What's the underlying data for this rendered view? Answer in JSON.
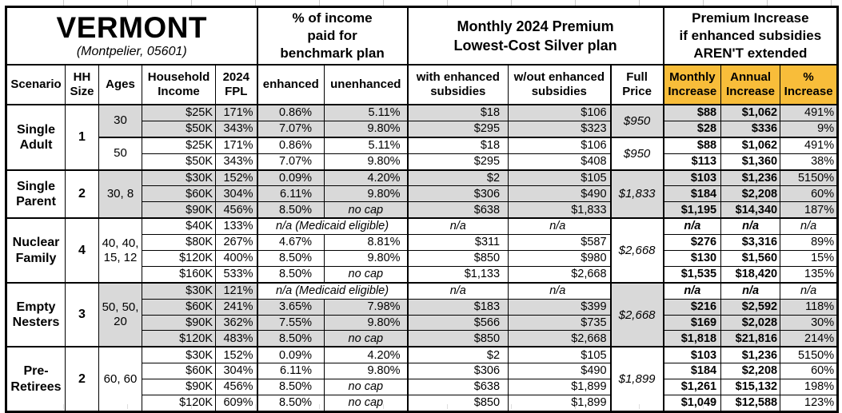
{
  "colors": {
    "gold": "#F8BD3A",
    "row_shade": "#D9D9D9",
    "border": "#000000",
    "background": "#FFFFFF"
  },
  "title": {
    "state": "VERMONT",
    "subtitle": "(Montpelier, 05601)"
  },
  "headers": {
    "benchmark": [
      "% of income",
      "paid for",
      "benchmark plan"
    ],
    "premium": [
      "Monthly 2024 Premium",
      "Lowest-Cost Silver plan"
    ],
    "increase": [
      "Premium Increase",
      "if enhanced subsidies",
      "AREN'T extended"
    ]
  },
  "columns": {
    "scenario": "Scenario",
    "hh": [
      "HH",
      "Size"
    ],
    "ages": "Ages",
    "income": [
      "Household",
      "Income"
    ],
    "fpl": [
      "2024",
      "FPL"
    ],
    "enhanced": "enhanced",
    "unenhanced": "unenhanced",
    "with_sub": [
      "with enhanced",
      "subsidies"
    ],
    "wout_sub": [
      "w/out enhanced",
      "subsidies"
    ],
    "full": [
      "Full",
      "Price"
    ],
    "monthly": [
      "Monthly",
      "Increase"
    ],
    "annual": [
      "Annual",
      "Increase"
    ],
    "pct": [
      "%",
      "Increase"
    ]
  },
  "labels": {
    "na": "n/a",
    "medicaid": "n/a (Medicaid eligible)",
    "nocap": "no cap"
  },
  "groups": [
    {
      "scenario": [
        "Single",
        "Adult"
      ],
      "hh_size": "1",
      "blocks": [
        {
          "ages": [
            "30"
          ],
          "shaded": true,
          "full_price": "$950",
          "rows": [
            {
              "income": "$25K",
              "fpl": "171%",
              "enh": "0.86%",
              "unenh": "5.11%",
              "wsub": "$18",
              "wosub": "$106",
              "mon": "$88",
              "ann": "$1,062",
              "pct": "491%"
            },
            {
              "income": "$50K",
              "fpl": "343%",
              "enh": "7.07%",
              "unenh": "9.80%",
              "wsub": "$295",
              "wosub": "$323",
              "mon": "$28",
              "ann": "$336",
              "pct": "9%"
            }
          ]
        },
        {
          "ages": [
            "50"
          ],
          "shaded": false,
          "full_price": "$950",
          "rows": [
            {
              "income": "$25K",
              "fpl": "171%",
              "enh": "0.86%",
              "unenh": "5.11%",
              "wsub": "$18",
              "wosub": "$106",
              "mon": "$88",
              "ann": "$1,062",
              "pct": "491%"
            },
            {
              "income": "$50K",
              "fpl": "343%",
              "enh": "7.07%",
              "unenh": "9.80%",
              "wsub": "$295",
              "wosob": "",
              "wosub": "$408",
              "mon": "$113",
              "ann": "$1,360",
              "pct": "38%"
            }
          ]
        }
      ]
    },
    {
      "scenario": [
        "Single",
        "Parent"
      ],
      "hh_size": "2",
      "blocks": [
        {
          "ages": [
            "30, 8"
          ],
          "shaded": true,
          "full_price": "$1,833",
          "rows": [
            {
              "income": "$30K",
              "fpl": "152%",
              "enh": "0.09%",
              "unenh": "4.20%",
              "wsub": "$2",
              "wosub": "$105",
              "mon": "$103",
              "ann": "$1,236",
              "pct": "5150%"
            },
            {
              "income": "$60K",
              "fpl": "304%",
              "enh": "6.11%",
              "unenh": "9.80%",
              "wsub": "$306",
              "wosub": "$490",
              "mon": "$184",
              "ann": "$2,208",
              "pct": "60%"
            },
            {
              "income": "$90K",
              "fpl": "456%",
              "enh": "8.50%",
              "nocap": true,
              "wsub": "$638",
              "wosub": "$1,833",
              "mon": "$1,195",
              "ann": "$14,340",
              "pct": "187%"
            }
          ]
        }
      ]
    },
    {
      "scenario": [
        "Nuclear",
        "Family"
      ],
      "hh_size": "4",
      "blocks": [
        {
          "ages": [
            "40, 40,",
            "15, 12"
          ],
          "shaded": false,
          "full_price": "$2,668",
          "rows": [
            {
              "income": "$40K",
              "fpl": "133%",
              "medicaid": true
            },
            {
              "income": "$80K",
              "fpl": "267%",
              "enh": "4.67%",
              "unenh": "8.81%",
              "wsub": "$311",
              "wosub": "$587",
              "mon": "$276",
              "ann": "$3,316",
              "pct": "89%"
            },
            {
              "income": "$120K",
              "fpl": "400%",
              "enh": "8.50%",
              "unenh": "9.80%",
              "wsub": "$850",
              "wosub": "$980",
              "mon": "$130",
              "ann": "$1,560",
              "pct": "15%"
            },
            {
              "income": "$160K",
              "fpl": "533%",
              "enh": "8.50%",
              "nocap": true,
              "wsub": "$1,133",
              "wosub": "$2,668",
              "mon": "$1,535",
              "ann": "$18,420",
              "pct": "135%"
            }
          ]
        }
      ]
    },
    {
      "scenario": [
        "Empty",
        "Nesters"
      ],
      "hh_size": "3",
      "blocks": [
        {
          "ages": [
            "50, 50,",
            "20"
          ],
          "shaded": true,
          "full_price": "$2,668",
          "rows": [
            {
              "income": "$30K",
              "fpl": "121%",
              "medicaid": true
            },
            {
              "income": "$60K",
              "fpl": "241%",
              "enh": "3.65%",
              "unenh": "7.98%",
              "wsub": "$183",
              "wosub": "$399",
              "mon": "$216",
              "ann": "$2,592",
              "pct": "118%"
            },
            {
              "income": "$90K",
              "fpl": "362%",
              "enh": "7.55%",
              "unenh": "9.80%",
              "wsub": "$566",
              "wosub": "$735",
              "mon": "$169",
              "ann": "$2,028",
              "pct": "30%"
            },
            {
              "income": "$120K",
              "fpl": "483%",
              "enh": "8.50%",
              "nocap": true,
              "wsub": "$850",
              "wosub": "$2,668",
              "mon": "$1,818",
              "ann": "$21,816",
              "pct": "214%"
            }
          ]
        }
      ]
    },
    {
      "scenario": [
        "Pre-",
        "Retirees"
      ],
      "hh_size": "2",
      "blocks": [
        {
          "ages": [
            "60, 60"
          ],
          "shaded": false,
          "full_price": "$1,899",
          "rows": [
            {
              "income": "$30K",
              "fpl": "152%",
              "enh": "0.09%",
              "unenh": "4.20%",
              "wsub": "$2",
              "wosub": "$105",
              "mon": "$103",
              "ann": "$1,236",
              "pct": "5150%"
            },
            {
              "income": "$60K",
              "fpl": "304%",
              "enh": "6.11%",
              "unenh": "9.80%",
              "wsub": "$306",
              "wosub": "$490",
              "mon": "$184",
              "ann": "$2,208",
              "pct": "60%"
            },
            {
              "income": "$90K",
              "fpl": "456%",
              "enh": "8.50%",
              "nocap": true,
              "wsub": "$638",
              "wosub": "$1,899",
              "mon": "$1,261",
              "ann": "$15,132",
              "pct": "198%"
            },
            {
              "income": "$120K",
              "fpl": "609%",
              "enh": "8.50%",
              "nocap": true,
              "wsub": "$850",
              "wosub": "$1,899",
              "mon": "$1,049",
              "ann": "$12,588",
              "pct": "123%"
            }
          ]
        }
      ]
    }
  ]
}
